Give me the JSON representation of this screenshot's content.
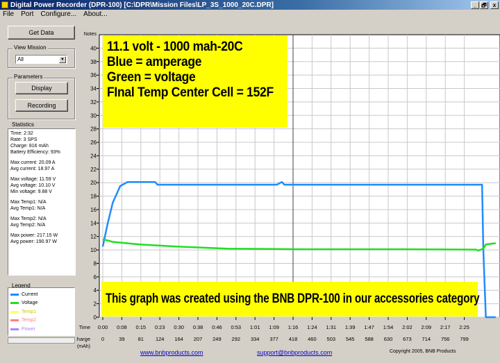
{
  "window": {
    "title": "Digital Power Recorder (DPR-100) [C:\\DPR\\Mission Files\\LP_3S_1000_20C.DPR]",
    "controls": [
      "_",
      "🗗",
      "x"
    ]
  },
  "menu": [
    "File",
    "Port",
    "Configure...",
    "About..."
  ],
  "left": {
    "get_data": "Get Data",
    "view_mission_label": "View Mission",
    "view_mission_value": "All",
    "parameters_label": "Parameters",
    "display_button": "Display",
    "recording_button": "Recording",
    "statistics_label": "Statistics",
    "stats": [
      [
        "Time: 2:32",
        "Rate: 3 SPS",
        "Charge: 816 mAh",
        "Battery Efficiency: 93%"
      ],
      [
        "Max current: 20.09 A",
        "Avg current: 18.97 A"
      ],
      [
        "Max voltage: 11.59 V",
        "Avg voltage: 10.10 V",
        "Min voltage: 9.88 V"
      ],
      [
        "Max Temp1: N/A",
        "Avg Temp1: N/A"
      ],
      [
        "Max Temp2: N/A",
        "Avg Temp2: N/A"
      ],
      [
        "Max power: 217.15 W",
        "Avg power: 190.97 W"
      ]
    ],
    "legend_label": "Legend",
    "legend": [
      {
        "label": "Current",
        "color": "#1e8cff"
      },
      {
        "label": "Voltage",
        "color": "#22dd22"
      },
      {
        "label": "Temp1",
        "color": "#ffff66"
      },
      {
        "label": "Temp2",
        "color": "#ff8080"
      },
      {
        "label": "Power",
        "color": "#b080ff"
      }
    ]
  },
  "annotations": {
    "top": [
      "11.1 volt - 1000 mah-20C",
      "Blue = amperage",
      "Green = voltage",
      "FInal Temp Center Cell = 152F"
    ],
    "bottom": "This graph was created using the BNB DPR-100 in our accessories category"
  },
  "chart_data": {
    "type": "line",
    "ylabel": "Notes",
    "ylim": [
      0,
      42
    ],
    "yticks": [
      0,
      2,
      4,
      6,
      8,
      10,
      12,
      14,
      16,
      18,
      20,
      22,
      24,
      26,
      28,
      30,
      32,
      34,
      36,
      38,
      40
    ],
    "time_label": "Time",
    "time_ticks": [
      "0:00",
      "0:08",
      "0:15",
      "0:23",
      "0:30",
      "0:38",
      "0:46",
      "0:53",
      "1:01",
      "1:09",
      "1:16",
      "1:24",
      "1:31",
      "1:39",
      "1:47",
      "1:54",
      "2:02",
      "2:09",
      "2:17",
      "2:25"
    ],
    "charge_label": "Charge (mAh)",
    "charge_ticks": [
      "0",
      "39",
      "81",
      "124",
      "164",
      "207",
      "249",
      "292",
      "334",
      "377",
      "418",
      "460",
      "503",
      "545",
      "588",
      "630",
      "673",
      "714",
      "756",
      "799"
    ],
    "grid": true,
    "series": [
      {
        "name": "Current",
        "color": "#1e8cff",
        "points": [
          [
            0,
            10.5
          ],
          [
            2,
            14
          ],
          [
            4,
            17
          ],
          [
            7,
            19.5
          ],
          [
            10,
            20.1
          ],
          [
            21,
            20.1
          ],
          [
            22,
            19.7
          ],
          [
            70,
            19.7
          ],
          [
            72,
            20.1
          ],
          [
            73,
            19.7
          ],
          [
            152,
            19.7
          ],
          [
            152.5,
            19.7
          ],
          [
            153,
            10
          ],
          [
            154,
            0
          ],
          [
            158,
            0
          ]
        ]
      },
      {
        "name": "Voltage",
        "color": "#22dd22",
        "points": [
          [
            0,
            11.6
          ],
          [
            4,
            11.2
          ],
          [
            15,
            10.8
          ],
          [
            30,
            10.5
          ],
          [
            50,
            10.2
          ],
          [
            80,
            10.1
          ],
          [
            120,
            10.1
          ],
          [
            150,
            10.05
          ],
          [
            151,
            9.9
          ],
          [
            153,
            10.2
          ],
          [
            154,
            10.8
          ],
          [
            158,
            11.0
          ]
        ]
      }
    ]
  },
  "footer": {
    "website": "www.bnbproducts.com",
    "email": "support@bnbproducts.com",
    "copyright": "Copyright 2005, BNB Products"
  }
}
